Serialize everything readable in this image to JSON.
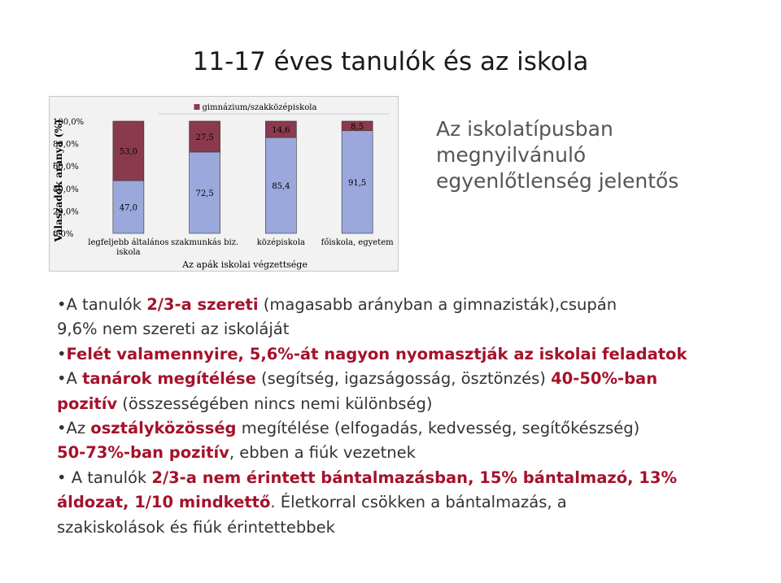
{
  "slide": {
    "title": "11-17 éves tanulók és az iskola",
    "side_note": [
      "Az iskolatípusban",
      "megnyilvánuló",
      "egyenlőtlenség jelentős"
    ]
  },
  "colors": {
    "bar_top": "#8b3a4e",
    "bar_bottom": "#9aa8dc",
    "chart_bg": "#f2f2f2",
    "highlight": "#a4122a",
    "body_text": "#333333"
  },
  "bullets": [
    {
      "lines": [
        [
          {
            "t": "A tanulók "
          },
          {
            "t": "2/3-a szereti",
            "h": true
          },
          {
            "t": " (magasabb arányban a gimnazisták),csupán"
          }
        ],
        [
          {
            "t": "9,6% nem szereti az iskoláját"
          }
        ]
      ]
    },
    {
      "lines": [
        [
          {
            "t": "Felét valamennyire, 5,6%-át nagyon nyomasztják az iskolai feladatok",
            "h": true
          }
        ]
      ]
    },
    {
      "lines": [
        [
          {
            "t": "A "
          },
          {
            "t": "tanárok megítélése",
            "h": true
          },
          {
            "t": " (segítség, igazságosság, ösztönzés) "
          },
          {
            "t": "40-50%-ban",
            "h": true
          }
        ],
        [
          {
            "t": "pozitív",
            "h": true
          },
          {
            "t": " (összességében nincs nemi különbség)"
          }
        ]
      ]
    },
    {
      "lines": [
        [
          {
            "t": "Az "
          },
          {
            "t": "osztályközösség",
            "h": true
          },
          {
            "t": " megítélése (elfogadás, kedvesség, segítőkészség)"
          }
        ],
        [
          {
            "t": "50-73%-ban pozitív",
            "h": true
          },
          {
            "t": ", ebben a fiúk vezetnek"
          }
        ]
      ]
    },
    {
      "lines": [
        [
          {
            "t": " A tanulók "
          },
          {
            "t": "2/3-a nem érintett bántalmazásban, 15% bántalmazó, 13%",
            "h": true
          }
        ],
        [
          {
            "t": "áldozat, 1/10 mindkettő",
            "h": true
          },
          {
            "t": ". Életkorral csökken a bántalmazás, a"
          }
        ],
        [
          {
            "t": "szakiskolások és fiúk érintettebbek"
          }
        ]
      ]
    }
  ],
  "chart_data": {
    "type": "bar",
    "stacked": true,
    "percent_stacked": true,
    "categories": [
      [
        "legfeljebb általános",
        "iskola"
      ],
      [
        "szakmunkás biz."
      ],
      [
        "középiskola"
      ],
      [
        "főiskola, egyetem"
      ]
    ],
    "series": [
      {
        "name": "",
        "color": "#9aa8dc",
        "values": [
          47.0,
          72.5,
          85.4,
          91.5
        ],
        "labels": [
          "47,0",
          "72,5",
          "85,4",
          "91,5"
        ]
      },
      {
        "name": "gimnázium/szakközépiskola",
        "color": "#8b3a4e",
        "values": [
          53.0,
          27.5,
          14.6,
          8.5
        ],
        "labels": [
          "53,0",
          "27,5",
          "14,6",
          "8,5"
        ]
      }
    ],
    "legend": {
      "label": "gimnázium/szakközépiskola",
      "placement": "top"
    },
    "xlabel": "Az apák iskolai végzettsége",
    "ylabel": "Válaszadók aránya (%)",
    "ylim": [
      0,
      100
    ],
    "y_ticks": [
      {
        "v": 0,
        "label": "0,0%"
      },
      {
        "v": 20,
        "label": "20,0%"
      },
      {
        "v": 40,
        "label": "40,0%"
      },
      {
        "v": 60,
        "label": "60,0%"
      },
      {
        "v": 80,
        "label": "80,0%"
      },
      {
        "v": 100,
        "label": "100,0%"
      }
    ],
    "grid": false
  }
}
